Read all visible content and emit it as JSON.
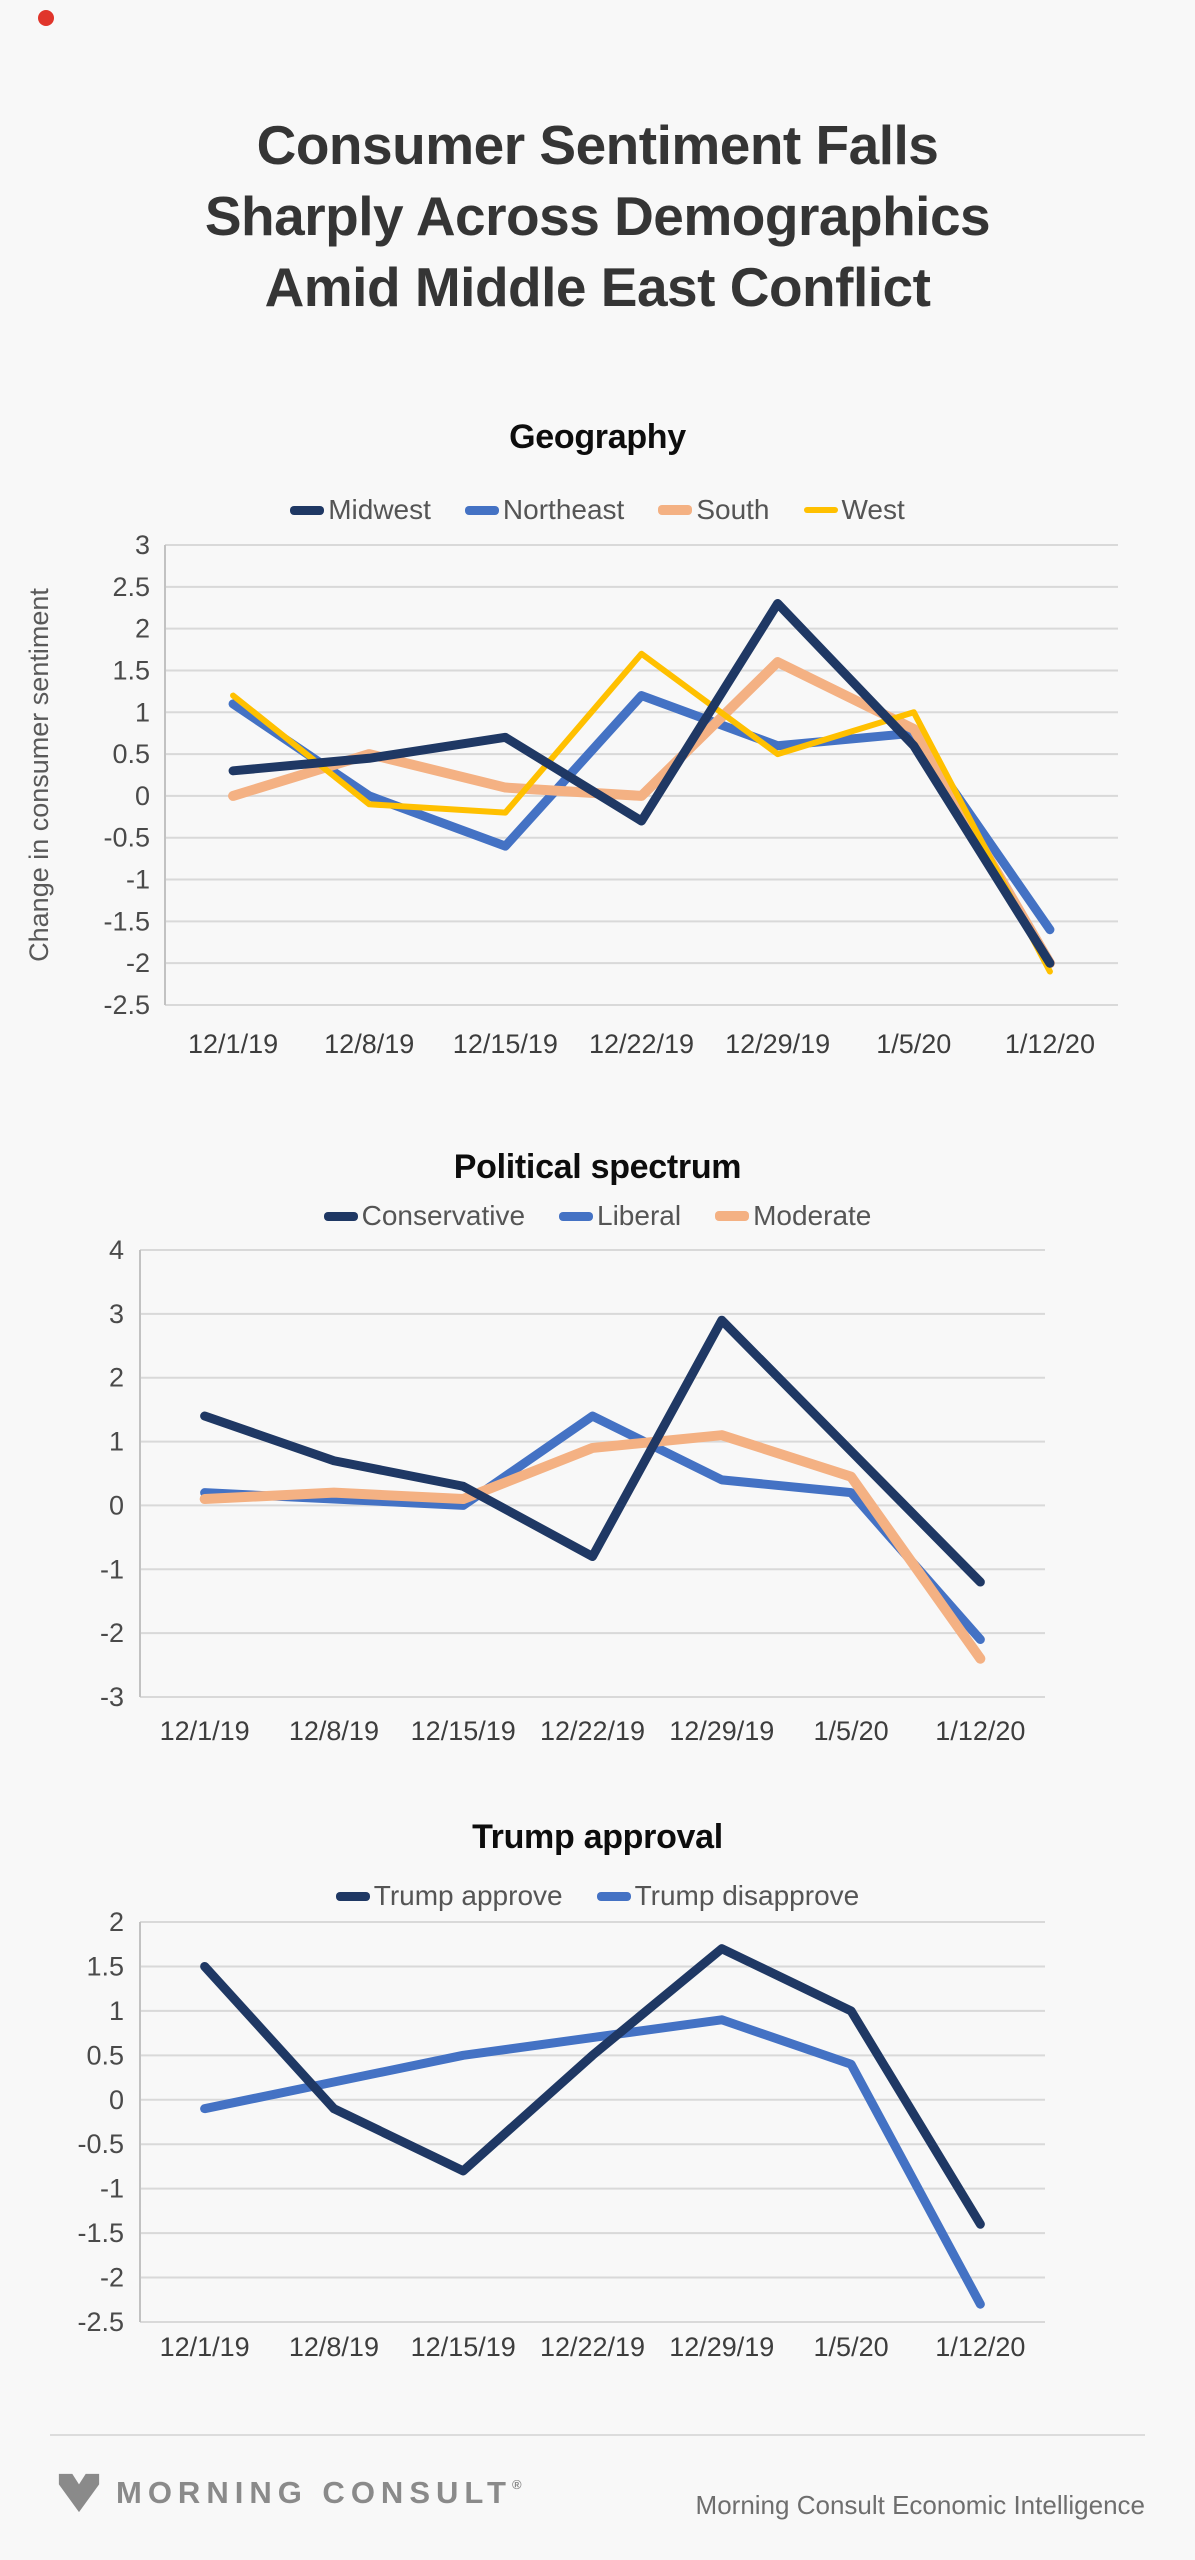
{
  "page": {
    "title_lines": [
      "Consumer Sentiment Falls",
      "Sharply Across Demographics",
      "Amid Middle East Conflict"
    ],
    "background": "#f8f8f8",
    "red_dot_color": "#e0352b"
  },
  "chart_data": [
    {
      "type": "line",
      "title": "Geography",
      "ylabel": "Change in consumer sentiment",
      "xlabel": "",
      "ylim": [
        -2.5,
        3
      ],
      "ystep": 0.5,
      "grid": true,
      "legend_position": "top",
      "categories": [
        "12/1/19",
        "12/8/19",
        "12/15/19",
        "12/22/19",
        "12/29/19",
        "1/5/20",
        "1/12/20"
      ],
      "series": [
        {
          "name": "Midwest",
          "color": "#1f3864",
          "width": 9,
          "values": [
            0.3,
            0.45,
            0.7,
            -0.3,
            2.3,
            0.6,
            -2.0
          ]
        },
        {
          "name": "Northeast",
          "color": "#4472c4",
          "width": 9,
          "values": [
            1.1,
            0.0,
            -0.6,
            1.2,
            0.6,
            0.75,
            -1.6
          ]
        },
        {
          "name": "South",
          "color": "#f4b183",
          "width": 10,
          "values": [
            0.0,
            0.5,
            0.1,
            0.0,
            1.6,
            0.8,
            -2.0
          ]
        },
        {
          "name": "West",
          "color": "#ffc000",
          "width": 6,
          "values": [
            1.2,
            -0.1,
            -0.2,
            1.7,
            0.5,
            1.0,
            -2.1
          ]
        }
      ]
    },
    {
      "type": "line",
      "title": "Political spectrum",
      "ylabel": "",
      "xlabel": "",
      "ylim": [
        -3,
        4
      ],
      "ystep": 1,
      "grid": true,
      "legend_position": "top",
      "categories": [
        "12/1/19",
        "12/8/19",
        "12/15/19",
        "12/22/19",
        "12/29/19",
        "1/5/20",
        "1/12/20"
      ],
      "series": [
        {
          "name": "Conservative",
          "color": "#1f3864",
          "width": 9,
          "values": [
            1.4,
            0.7,
            0.3,
            -0.8,
            2.9,
            0.85,
            -1.2
          ]
        },
        {
          "name": "Liberal",
          "color": "#4472c4",
          "width": 9,
          "values": [
            0.2,
            0.1,
            0.0,
            1.4,
            0.4,
            0.2,
            -2.1
          ]
        },
        {
          "name": "Moderate",
          "color": "#f4b183",
          "width": 10,
          "values": [
            0.1,
            0.2,
            0.1,
            0.9,
            1.1,
            0.45,
            -2.4
          ]
        }
      ]
    },
    {
      "type": "line",
      "title": "Trump approval",
      "ylabel": "",
      "xlabel": "",
      "ylim": [
        -2.5,
        2
      ],
      "ystep": 0.5,
      "grid": true,
      "legend_position": "top",
      "categories": [
        "12/1/19",
        "12/8/19",
        "12/15/19",
        "12/22/19",
        "12/29/19",
        "1/5/20",
        "1/12/20"
      ],
      "series": [
        {
          "name": "Trump approve",
          "color": "#1f3864",
          "width": 9,
          "values": [
            1.5,
            -0.1,
            -0.8,
            0.5,
            1.7,
            1.0,
            -1.4
          ]
        },
        {
          "name": "Trump disapprove",
          "color": "#4472c4",
          "width": 9,
          "values": [
            -0.1,
            0.2,
            0.5,
            0.7,
            0.9,
            0.4,
            -2.3
          ]
        }
      ]
    }
  ],
  "footer": {
    "logo_text": "MORNING CONSULT",
    "registered_mark": "®",
    "credit": "Morning Consult Economic Intelligence"
  },
  "style": {
    "grid_color": "#d9d9d9",
    "axis_color": "#c2c2c2",
    "tick_color": "#4a4a4a",
    "xlabel_color": "#3d3d3d",
    "ylabel_color": "#595959"
  }
}
